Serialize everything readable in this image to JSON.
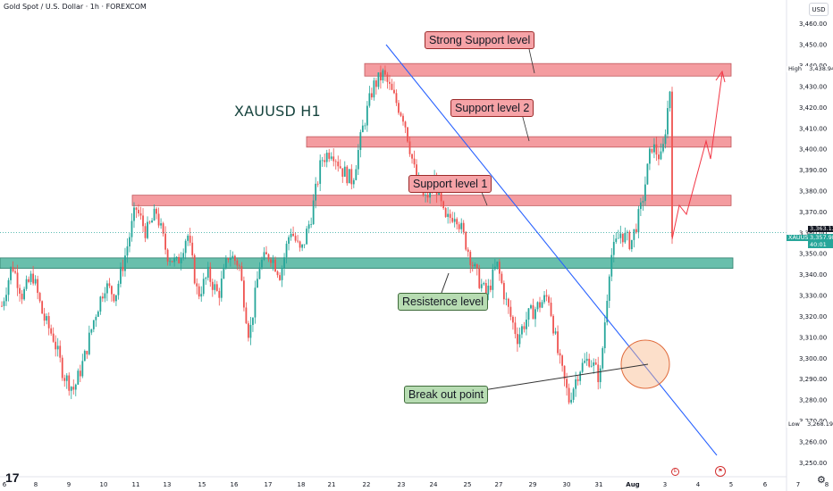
{
  "header": {
    "title": "Gold Spot / U.S. Dollar · 1h · FOREXCOM"
  },
  "currency": "USD",
  "chart_title": "XAUUSD H1",
  "annotations": {
    "strong_support": "Strong Support level",
    "support2": "Support level 2",
    "support1": "Support level 1",
    "resistance": "Resistence level",
    "breakout": "Break out point"
  },
  "price_axis": {
    "ticks": [
      "3,460.00",
      "3,450.00",
      "3,440.00",
      "3,430.00",
      "3,420.00",
      "3,410.00",
      "3,400.00",
      "3,390.00",
      "3,380.00",
      "3,370.00",
      "3,360.00",
      "3,350.00",
      "3,340.00",
      "3,330.00",
      "3,320.00",
      "3,310.00",
      "3,300.00",
      "3,290.00",
      "3,280.00",
      "3,270.00",
      "3,260.00",
      "3,250.00"
    ],
    "high_label": "High",
    "high_value": "3,438.94",
    "low_label": "Low",
    "low_value": "3,268.19",
    "price_line_value": "3,363.13",
    "symbol": "XAUUSD",
    "current_price": "3,357.98",
    "countdown": "40:01"
  },
  "time_axis": {
    "labels": [
      "6",
      "8",
      "9",
      "10",
      "11",
      "13",
      "15",
      "16",
      "17",
      "18",
      "21",
      "22",
      "23",
      "24",
      "25",
      "27",
      "29",
      "30",
      "31",
      "Aug",
      "3",
      "4",
      "5",
      "6",
      "7",
      "8"
    ]
  },
  "colors": {
    "bull": "#26a69a",
    "bear": "#ef5350",
    "red_zone": "#f28b8f",
    "green_zone": "#4fb49e",
    "trendline": "#2962ff",
    "arrow": "#f23645"
  },
  "icons": {
    "logo": "tradingview-logo-icon",
    "earnings": "earnings-event-icon",
    "flag": "us-flag-event-icon",
    "settings": "gear-icon"
  },
  "chart_data": {
    "type": "candlestick",
    "title": "XAUUSD H1",
    "y_range": [
      3245,
      3465
    ],
    "zones": [
      {
        "name": "Strong Support level",
        "low": 3435,
        "high": 3441
      },
      {
        "name": "Support level 2",
        "low": 3401,
        "high": 3406
      },
      {
        "name": "Support level 1",
        "low": 3373,
        "high": 3378
      },
      {
        "name": "Resistence level",
        "low": 3343,
        "high": 3348
      }
    ],
    "path_points": [
      3325,
      3345,
      3330,
      3340,
      3320,
      3310,
      3292,
      3285,
      3300,
      3320,
      3335,
      3330,
      3350,
      3372,
      3360,
      3370,
      3350,
      3345,
      3360,
      3330,
      3340,
      3330,
      3350,
      3345,
      3310,
      3345,
      3350,
      3340,
      3362,
      3350,
      3368,
      3395,
      3400,
      3390,
      3385,
      3410,
      3430,
      3436,
      3425,
      3415,
      3390,
      3375,
      3385,
      3365,
      3370,
      3355,
      3340,
      3330,
      3345,
      3325,
      3310,
      3320,
      3325,
      3330,
      3300,
      3280,
      3295,
      3300,
      3290,
      3348,
      3360,
      3355,
      3372,
      3402,
      3395,
      3438
    ],
    "last_price": 3357.98
  }
}
